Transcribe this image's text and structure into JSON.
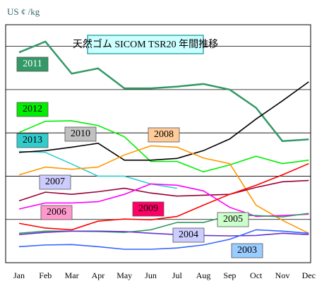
{
  "chart_data": {
    "type": "line",
    "title": "天然ゴム SICOM TSR20 年間推移",
    "y_label": "US ¢ /kg",
    "categories": [
      "Jan",
      "Feb",
      "Mar",
      "Apr",
      "May",
      "Jun",
      "Jul",
      "Aug",
      "Sep",
      "Oct",
      "Nov",
      "Dec"
    ],
    "ylim": [
      0,
      5.5
    ],
    "yticks": [
      1,
      2,
      3,
      4,
      5
    ],
    "grid": true,
    "series": [
      {
        "name": "2011",
        "color": "#339966",
        "values": [
          4.86,
          5.11,
          4.37,
          4.49,
          4.03,
          4.03,
          4.07,
          4.13,
          4.0,
          3.58,
          2.81,
          2.85
        ]
      },
      {
        "name": "2012",
        "color": "#00ee00",
        "values": [
          3.01,
          3.27,
          3.28,
          3.17,
          2.91,
          2.34,
          2.34,
          2.1,
          2.26,
          2.46,
          2.29,
          2.37
        ]
      },
      {
        "name": "2013",
        "color": "#33cccc",
        "values": [
          2.57,
          2.55,
          2.28,
          2.0,
          2.0,
          1.82,
          1.72,
          null,
          null,
          null,
          null,
          null
        ]
      },
      {
        "name": "2010",
        "color": "#000000",
        "values": [
          2.55,
          2.59,
          2.67,
          2.76,
          2.37,
          2.37,
          2.41,
          2.59,
          2.86,
          3.32,
          3.74,
          4.18
        ]
      },
      {
        "name": "2008",
        "color": "#ff9900",
        "values": [
          2.03,
          2.21,
          2.16,
          2.21,
          2.49,
          2.7,
          2.67,
          2.42,
          2.29,
          1.33,
          0.98,
          0.68
        ]
      },
      {
        "name": "2007",
        "color": "#990033",
        "values": [
          1.43,
          1.63,
          1.58,
          1.64,
          1.72,
          1.61,
          1.54,
          1.56,
          1.58,
          1.74,
          1.87,
          1.9
        ]
      },
      {
        "name": "2006",
        "color": "#ff00ff",
        "values": [
          1.24,
          1.38,
          1.38,
          1.41,
          1.58,
          1.82,
          1.79,
          1.66,
          1.28,
          1.07,
          1.09,
          1.12
        ]
      },
      {
        "name": "2009",
        "color": "#ff0000",
        "values": [
          0.91,
          0.8,
          0.76,
          0.96,
          1.01,
          0.99,
          1.07,
          1.33,
          1.58,
          1.79,
          2.03,
          2.29
        ]
      },
      {
        "name": "2005",
        "color": "#339966",
        "values": [
          0.68,
          0.73,
          0.73,
          0.72,
          0.7,
          0.76,
          0.93,
          0.93,
          1.09,
          1.09,
          1.06,
          1.14
        ]
      },
      {
        "name": "2004",
        "color": "#6633cc",
        "values": [
          0.65,
          0.7,
          0.73,
          0.73,
          0.72,
          0.68,
          0.65,
          0.63,
          0.62,
          0.63,
          0.68,
          0.65
        ]
      },
      {
        "name": "2003",
        "color": "#3366ff",
        "values": [
          0.37,
          0.41,
          0.42,
          0.37,
          0.31,
          0.31,
          0.34,
          0.41,
          0.54,
          0.76,
          0.73,
          0.68
        ]
      }
    ]
  }
}
